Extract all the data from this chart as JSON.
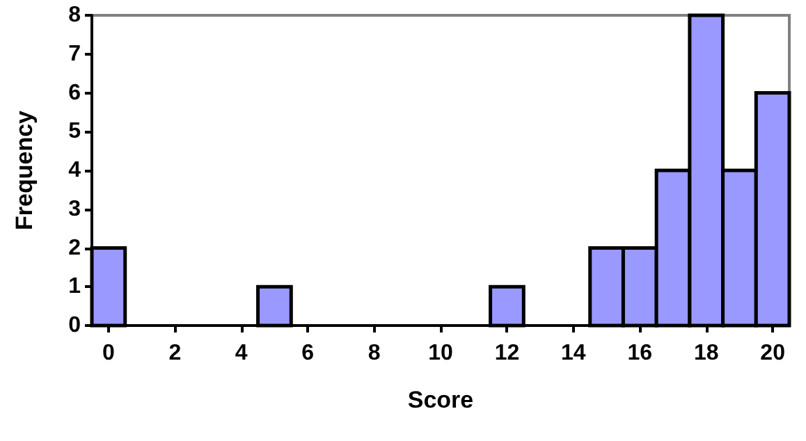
{
  "chart_data": {
    "type": "histogram",
    "xlabel": "Score",
    "ylabel": "Frequency",
    "color": "#9999ff",
    "bins": [
      -0.5,
      0.5,
      1.5,
      2.5,
      3.5,
      4.5,
      5.5,
      6.5,
      7.5,
      8.5,
      9.5,
      10.5,
      11.5,
      12.5,
      13.5,
      14.5,
      15.5,
      16.5,
      17.5,
      18.5,
      19.5,
      20.5
    ],
    "values": [
      2,
      0,
      0,
      0,
      0,
      1,
      0,
      0,
      0,
      0,
      0,
      0,
      1,
      0,
      0,
      2,
      2,
      4,
      8,
      4,
      6
    ],
    "xlim": [
      -0.5,
      20.5
    ],
    "xticks": [
      0,
      2,
      4,
      6,
      8,
      10,
      12,
      14,
      16,
      18,
      20
    ],
    "ylim": [
      0,
      8
    ],
    "yticks": [
      0,
      1,
      2,
      3,
      4,
      5,
      6,
      7,
      8
    ]
  }
}
